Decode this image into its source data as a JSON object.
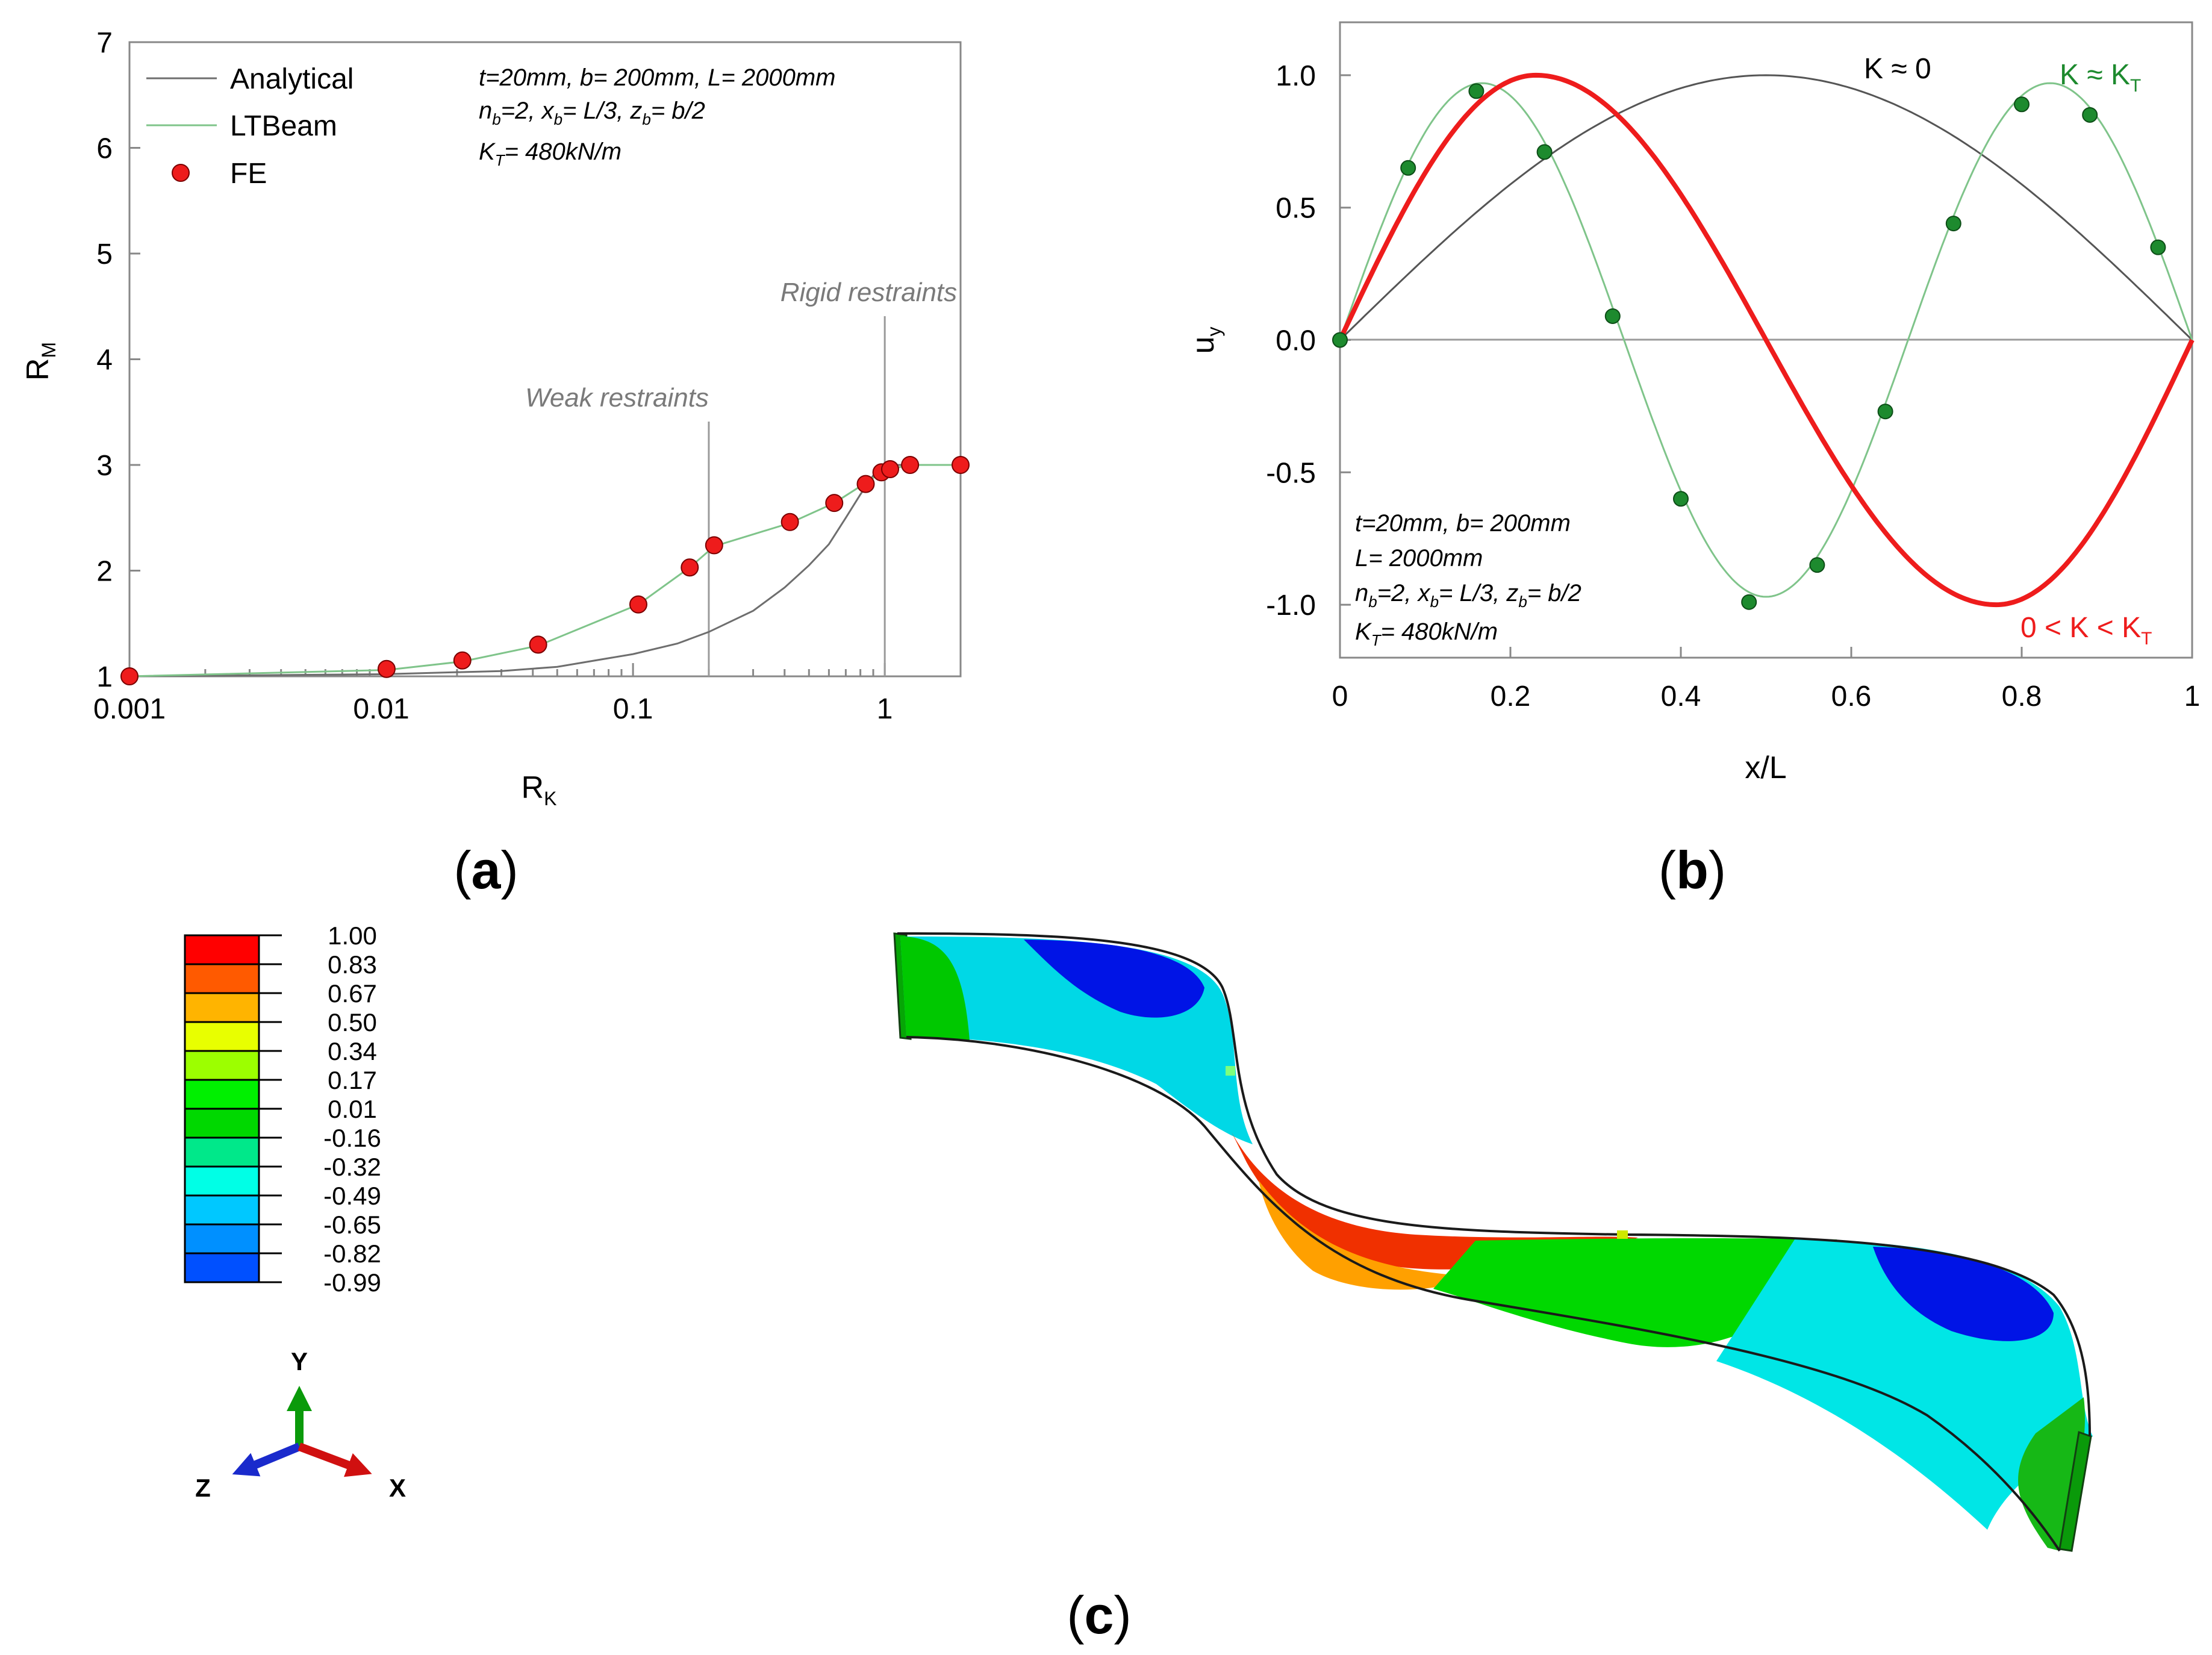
{
  "chart_data": [
    {
      "id": "a",
      "type": "line",
      "panel_label": "(a)",
      "x_scale": "log",
      "xlim": [
        0.001,
        2
      ],
      "ylim": [
        1,
        7
      ],
      "xlabel": "R_K",
      "ylabel": "R_M",
      "x_ticks": [
        0.001,
        0.01,
        0.1,
        1
      ],
      "x_tick_labels": [
        "0.001",
        "0.01",
        "0.1",
        "1"
      ],
      "y_ticks": [
        1,
        2,
        3,
        4,
        5,
        6,
        7
      ],
      "y_tick_labels": [
        "1",
        "2",
        "3",
        "4",
        "5",
        "6",
        "7"
      ],
      "legend": {
        "position": "top-left",
        "entries": [
          "Analytical",
          "LTBeam",
          "FE"
        ]
      },
      "annotation_lines": [
        "t=20mm, b= 200mm, L= 2000mm",
        "n_b=2, x_b= L/3, z_b= b/2",
        "K_T= 480kN/m"
      ],
      "reference_lines": [
        {
          "label": "Weak restraints",
          "x": 0.2
        },
        {
          "label": "Rigid restraints",
          "x": 1.0
        }
      ],
      "series": [
        {
          "name": "Analytical",
          "color": "#6e6e6e",
          "style": "line",
          "x": [
            0.001,
            0.01,
            0.03,
            0.05,
            0.1,
            0.15,
            0.2,
            0.3,
            0.4,
            0.5,
            0.6,
            0.7,
            0.8,
            0.9,
            1.0,
            2.0
          ],
          "y": [
            1.0,
            1.02,
            1.05,
            1.09,
            1.21,
            1.31,
            1.42,
            1.62,
            1.84,
            2.05,
            2.25,
            2.5,
            2.72,
            2.9,
            3.0,
            3.0
          ]
        },
        {
          "name": "LTBeam",
          "color": "#7fc48a",
          "style": "line",
          "x": [
            0.001,
            0.0105,
            0.021,
            0.042,
            0.105,
            0.168,
            0.21,
            0.42,
            0.63,
            0.84,
            0.97,
            1.05,
            1.26,
            2.0
          ],
          "y": [
            1.0,
            1.06,
            1.14,
            1.29,
            1.68,
            2.03,
            2.23,
            2.45,
            2.64,
            2.83,
            2.93,
            2.96,
            3.0,
            3.0
          ]
        },
        {
          "name": "FE",
          "color": "#ee1c1c",
          "style": "markers",
          "x": [
            0.001,
            0.0105,
            0.021,
            0.042,
            0.105,
            0.168,
            0.21,
            0.42,
            0.63,
            0.84,
            0.97,
            1.05,
            1.26,
            2.0
          ],
          "y": [
            1.0,
            1.07,
            1.15,
            1.3,
            1.68,
            2.03,
            2.24,
            2.46,
            2.64,
            2.82,
            2.93,
            2.96,
            3.0,
            3.0
          ]
        }
      ]
    },
    {
      "id": "b",
      "type": "line",
      "panel_label": "(b)",
      "xlim": [
        0,
        1
      ],
      "ylim": [
        -1.2,
        1.2
      ],
      "xlabel": "x/L",
      "ylabel": "u_y",
      "x_ticks": [
        0,
        0.2,
        0.4,
        0.6,
        0.8,
        1
      ],
      "x_tick_labels": [
        "0",
        "0.2",
        "0.4",
        "0.6",
        "0.8",
        "1"
      ],
      "y_ticks": [
        1.0,
        0.5,
        0.0,
        -0.5,
        -1.0
      ],
      "y_tick_labels": [
        "1.0",
        "0.5",
        "0.0",
        "-0.5",
        "-1.0"
      ],
      "annotation_lines": [
        "t=20mm, b= 200mm",
        "L= 2000mm",
        "n_b=2, x_b= L/3, z_b= b/2",
        "K_T= 480kN/m"
      ],
      "curve_labels": [
        {
          "series": "K ≈ 0",
          "text": "K ≈ 0",
          "color": "#000000"
        },
        {
          "series": "K ≈ K_T",
          "text": "K ≈ K_T",
          "color": "#1d8a2e"
        },
        {
          "series": "0 < K < K_T",
          "text": "0 < K < K_T",
          "color": "#ee1c1c"
        }
      ],
      "series": [
        {
          "name": "K ≈ 0",
          "color": "#555555",
          "style": "line",
          "function": "sin(pi x)"
        },
        {
          "name": "K ≈ K_T",
          "color": "#7fc48a",
          "style": "line",
          "function": "sin(3 pi x)"
        },
        {
          "name": "0 < K < K_T",
          "color": "#ee1c1c",
          "style": "thick-line",
          "function": "sin(2 pi x) shifted"
        },
        {
          "name": "FE (K ≈ K_T)",
          "color": "#1d8a2e",
          "style": "markers",
          "x": [
            0,
            0.08,
            0.16,
            0.24,
            0.32,
            0.4,
            0.48,
            0.56,
            0.64,
            0.72,
            0.8,
            0.88,
            0.96
          ],
          "y": [
            0.0,
            0.65,
            0.94,
            0.71,
            0.09,
            -0.6,
            -0.99,
            -0.85,
            -0.27,
            0.44,
            0.89,
            0.85,
            0.35
          ]
        }
      ]
    },
    {
      "id": "c",
      "type": "other",
      "panel_label": "(c)",
      "description": "FE buckled shape contour",
      "colorbar_values": [
        "1.00",
        "0.83",
        "0.67",
        "0.50",
        "0.34",
        "0.17",
        "0.01",
        "-0.16",
        "-0.32",
        "-0.49",
        "-0.65",
        "-0.82",
        "-0.99"
      ],
      "colorbar_colors": [
        "#ff0000",
        "#ff5a00",
        "#ffb400",
        "#e8ff00",
        "#9cff00",
        "#00f000",
        "#00d800",
        "#00e88a",
        "#00ffe6",
        "#00c8ff",
        "#0090ff",
        "#0050ff",
        "#0000e6"
      ],
      "axis_triad_labels": [
        "Y",
        "Z",
        "X"
      ]
    }
  ]
}
